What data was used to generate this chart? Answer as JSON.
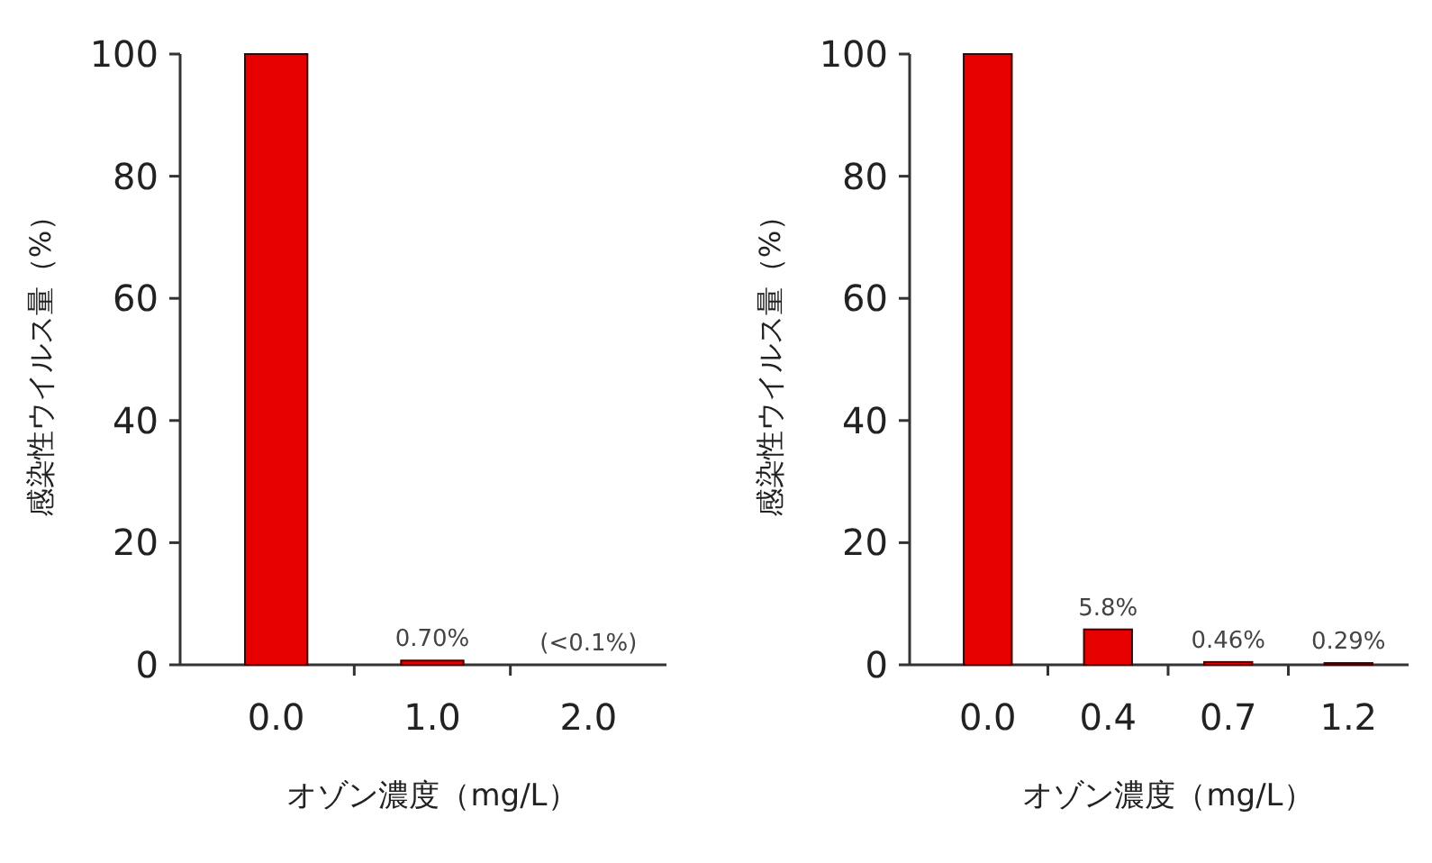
{
  "chart_data": [
    {
      "type": "bar",
      "categories": [
        "0.0",
        "1.0",
        "2.0"
      ],
      "values": [
        100,
        0.7,
        0
      ],
      "value_labels": [
        null,
        "0.70%",
        "(<0.1%)"
      ],
      "color": "#e60000",
      "ylabel": "感染性ウイルス量（%）",
      "xlabel": "オゾン濃度（mg/L）",
      "ylim": [
        0,
        100
      ],
      "yticks": [
        0,
        20,
        40,
        60,
        80,
        100
      ]
    },
    {
      "type": "bar",
      "categories": [
        "0.0",
        "0.4",
        "0.7",
        "1.2"
      ],
      "values": [
        100,
        5.8,
        0.46,
        0.29
      ],
      "value_labels": [
        null,
        "5.8%",
        "0.46%",
        "0.29%"
      ],
      "color": "#e60000",
      "ylabel": "感染性ウイルス量（%）",
      "xlabel": "オゾン濃度（mg/L）",
      "ylim": [
        0,
        100
      ],
      "yticks": [
        0,
        20,
        40,
        60,
        80,
        100
      ]
    }
  ]
}
